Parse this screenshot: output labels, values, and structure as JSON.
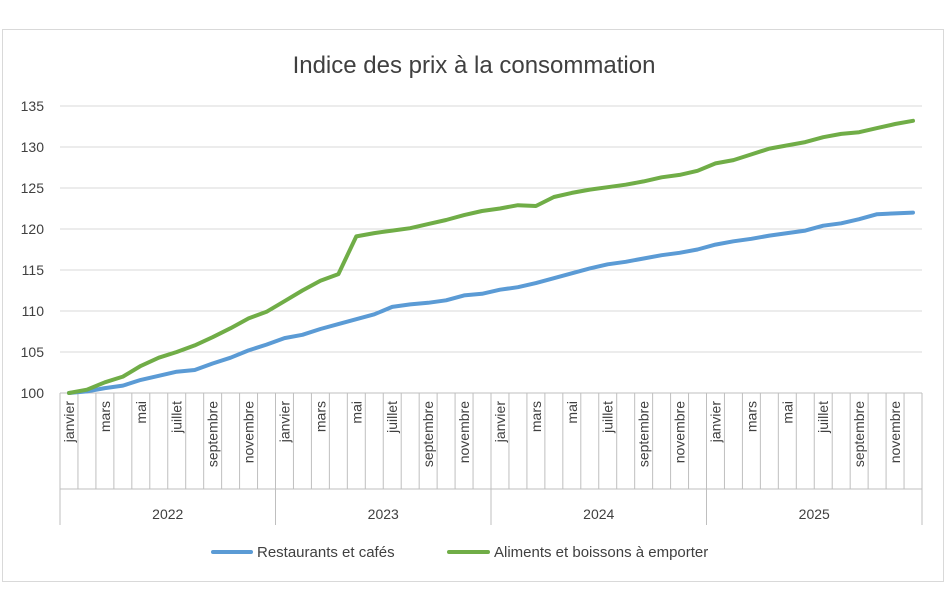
{
  "chart_data": {
    "type": "line",
    "title": "Indice des prix à la consommation",
    "xlabel": "",
    "ylabel": "",
    "ylim": [
      100,
      135
    ],
    "yticks": [
      100,
      105,
      110,
      115,
      120,
      125,
      130,
      135
    ],
    "grid": true,
    "legend_position": "bottom",
    "month_labels": [
      "janvier",
      "mars",
      "mai",
      "juillet",
      "septembre",
      "novembre"
    ],
    "month_label_indices": [
      0,
      2,
      4,
      6,
      8,
      10
    ],
    "years": [
      "2022",
      "2023",
      "2024",
      "2025"
    ],
    "series": [
      {
        "name": "Restaurants et cafés",
        "color": "#5b9bd5",
        "values": [
          100.0,
          100.2,
          100.6,
          100.9,
          101.6,
          102.1,
          102.6,
          102.8,
          103.6,
          104.3,
          105.2,
          105.9,
          106.7,
          107.1,
          107.8,
          108.4,
          109.0,
          109.6,
          110.5,
          110.8,
          111.0,
          111.3,
          111.9,
          112.1,
          112.6,
          112.9,
          113.4,
          114.0,
          114.6,
          115.2,
          115.7,
          116.0,
          116.4,
          116.8,
          117.1,
          117.5,
          118.1,
          118.5,
          118.8,
          119.2,
          119.5,
          119.8,
          120.4,
          120.7,
          121.2,
          121.8,
          121.9,
          122.0
        ]
      },
      {
        "name": "Aliments et boissons à emporter",
        "color": "#70ad47",
        "values": [
          100.0,
          100.4,
          101.3,
          102.0,
          103.3,
          104.3,
          105.0,
          105.8,
          106.8,
          107.9,
          109.1,
          109.9,
          111.2,
          112.5,
          113.7,
          114.5,
          119.1,
          119.5,
          119.8,
          120.1,
          120.6,
          121.1,
          121.7,
          122.2,
          122.5,
          122.9,
          122.8,
          123.9,
          124.4,
          124.8,
          125.1,
          125.4,
          125.8,
          126.3,
          126.6,
          127.1,
          128.0,
          128.4,
          129.1,
          129.8,
          130.2,
          130.6,
          131.2,
          131.6,
          131.8,
          132.3,
          132.8,
          133.2
        ]
      }
    ]
  }
}
